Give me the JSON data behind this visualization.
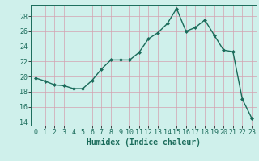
{
  "x": [
    0,
    1,
    2,
    3,
    4,
    5,
    6,
    7,
    8,
    9,
    10,
    11,
    12,
    13,
    14,
    15,
    16,
    17,
    18,
    19,
    20,
    21,
    22,
    23
  ],
  "y": [
    19.8,
    19.4,
    18.9,
    18.8,
    18.4,
    18.4,
    19.5,
    21.0,
    22.2,
    22.2,
    22.2,
    23.2,
    25.0,
    25.8,
    27.0,
    29.0,
    26.0,
    26.5,
    27.5,
    25.5,
    23.5,
    23.3,
    17.0,
    14.5
  ],
  "line_color": "#1a6b5a",
  "marker": "D",
  "marker_size": 2.0,
  "bg_color": "#cff0eb",
  "grid_color": "#d4a0b0",
  "xlabel": "Humidex (Indice chaleur)",
  "xlim": [
    -0.5,
    23.5
  ],
  "ylim": [
    13.5,
    29.5
  ],
  "yticks": [
    14,
    16,
    18,
    20,
    22,
    24,
    26,
    28
  ],
  "xticks": [
    0,
    1,
    2,
    3,
    4,
    5,
    6,
    7,
    8,
    9,
    10,
    11,
    12,
    13,
    14,
    15,
    16,
    17,
    18,
    19,
    20,
    21,
    22,
    23
  ],
  "label_fontsize": 7.0,
  "tick_fontsize": 6.0
}
